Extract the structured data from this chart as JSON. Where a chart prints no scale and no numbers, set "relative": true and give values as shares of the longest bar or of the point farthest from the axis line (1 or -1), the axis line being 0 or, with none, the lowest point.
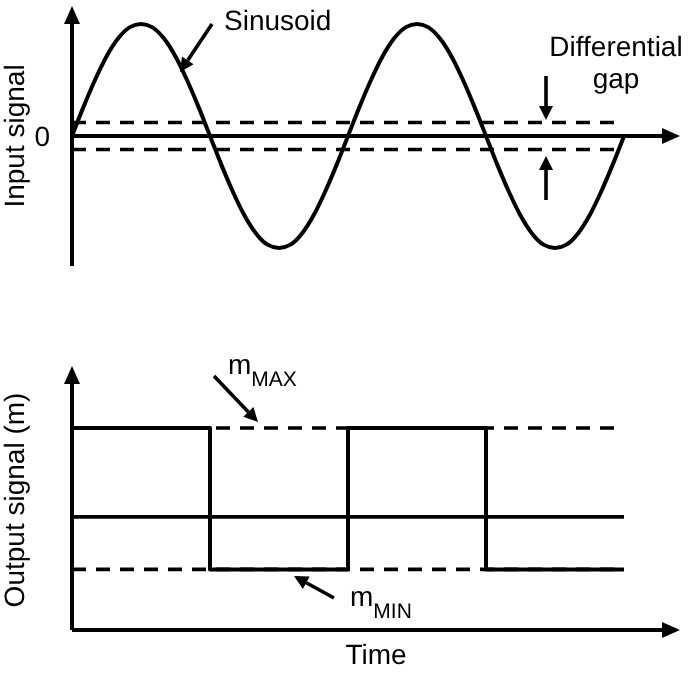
{
  "chart_data": [
    {
      "type": "line",
      "relative": true,
      "ylabel": "Input signal",
      "categories": [
        null,
        null,
        null,
        null,
        null,
        null,
        null,
        null,
        null,
        null,
        null,
        null,
        null,
        null,
        null,
        null,
        null,
        null,
        null,
        null,
        null,
        null,
        null,
        null,
        null,
        null,
        null,
        null,
        null,
        null,
        null,
        null,
        null,
        null,
        null,
        null,
        null,
        null,
        null,
        null,
        null,
        null,
        null,
        null,
        null,
        null,
        null,
        null,
        null
      ],
      "series": [
        {
          "color": "#000000",
          "values": [
            0,
            0.26,
            0.5,
            0.71,
            0.87,
            0.97,
            1,
            0.97,
            0.87,
            0.71,
            0.5,
            0.26,
            0,
            -0.26,
            -0.5,
            -0.71,
            -0.87,
            -0.97,
            -1,
            -0.97,
            -0.87,
            -0.71,
            -0.5,
            -0.26,
            0,
            0.26,
            0.5,
            0.71,
            0.87,
            0.97,
            1,
            0.97,
            0.87,
            0.71,
            0.5,
            0.26,
            0,
            -0.26,
            -0.5,
            -0.71,
            -0.87,
            -0.97,
            -1,
            -0.97,
            -0.87,
            -0.71,
            -0.5,
            -0.26,
            0
          ]
        }
      ],
      "ref_lines": [
        {
          "axis": "y",
          "value": 0.12,
          "line_style": "dashed",
          "color": "#000000"
        },
        {
          "axis": "y",
          "value": -0.12,
          "line_style": "dashed",
          "color": "#000000"
        }
      ],
      "annotations": [
        "Sinusoid",
        "Differential gap",
        "0"
      ]
    },
    {
      "type": "step",
      "relative": true,
      "ylabel": "Output signal (m)",
      "xlabel": "Time",
      "categories": [
        null,
        null,
        null,
        null,
        null
      ],
      "series": [
        {
          "color": "#000000",
          "values": [
            1,
            0.3,
            1,
            0.3,
            0.3
          ]
        }
      ],
      "ref_lines": [
        {
          "axis": "y",
          "value": 1,
          "line_style": "dashed",
          "color": "#000000"
        },
        {
          "axis": "y",
          "value": 0.3,
          "line_style": "dashed",
          "color": "#000000"
        },
        {
          "axis": "y",
          "value": 0.56,
          "line_style": "solid",
          "color": "#000000"
        }
      ],
      "annotations": [
        "m$_{MAX}$",
        "m$_{MIN}$"
      ]
    }
  ]
}
